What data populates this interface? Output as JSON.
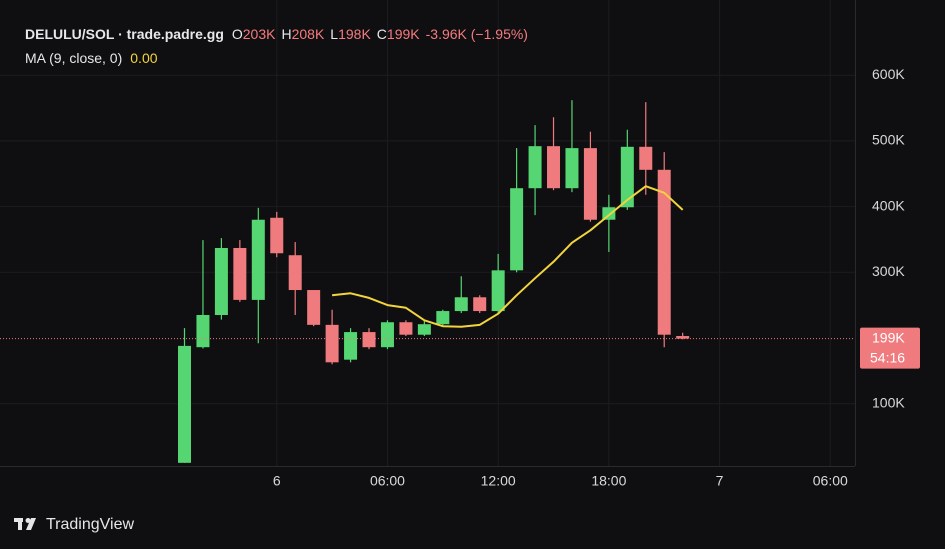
{
  "chart_data": {
    "type": "candlestick",
    "title": "DELULU/SOL · trade.padre.gg",
    "ohlc_legend": [
      {
        "key": "O",
        "label": "203K"
      },
      {
        "key": "H",
        "label": "208K"
      },
      {
        "key": "L",
        "label": "198K"
      },
      {
        "key": "C",
        "label": "199K"
      }
    ],
    "change": "-3.96K (−1.95%)",
    "x": [
      -5,
      -4,
      -3,
      -2,
      -1,
      0,
      1,
      2,
      3,
      4,
      5,
      6,
      7,
      8,
      9,
      10,
      11,
      12,
      13,
      14,
      15,
      16,
      17,
      18,
      19,
      20,
      21,
      22
    ],
    "open": [
      10000,
      186000,
      235000,
      337000,
      258000,
      383000,
      326000,
      273000,
      220000,
      167000,
      209000,
      186000,
      224000,
      205000,
      221000,
      241000,
      262000,
      241000,
      303000,
      428000,
      492000,
      428000,
      489000,
      380000,
      399000,
      491000,
      456000,
      203000
    ],
    "high": [
      215000,
      349000,
      352000,
      349000,
      398000,
      392000,
      346000,
      273000,
      243000,
      215000,
      215000,
      227000,
      227000,
      226000,
      243000,
      294000,
      265000,
      328000,
      489000,
      524000,
      536000,
      562000,
      514000,
      418000,
      517000,
      559000,
      483000,
      208000
    ],
    "low": [
      10000,
      184000,
      228000,
      255000,
      192000,
      323000,
      235000,
      218000,
      160000,
      163000,
      183000,
      183000,
      203000,
      203000,
      219000,
      238000,
      238000,
      238000,
      300000,
      387000,
      425000,
      422000,
      377000,
      331000,
      395000,
      418000,
      186000,
      198000
    ],
    "close": [
      188000,
      235000,
      337000,
      258000,
      380000,
      329000,
      273000,
      220000,
      163000,
      209000,
      186000,
      224000,
      205000,
      221000,
      241000,
      262000,
      241000,
      303000,
      428000,
      492000,
      428000,
      489000,
      380000,
      399000,
      491000,
      456000,
      205000,
      199000
    ],
    "up_color": "#55d672",
    "down_color": "#f07b7e",
    "indicator": {
      "name": "MA (9, close, 0)",
      "value_label": "0.00",
      "color": "#f2d43d",
      "values": [
        null,
        null,
        null,
        null,
        null,
        null,
        null,
        null,
        265000,
        268000,
        261000,
        250000,
        246000,
        227000,
        218000,
        217000,
        220000,
        237000,
        265000,
        291000,
        316000,
        345000,
        364000,
        387000,
        410000,
        431000,
        421000,
        395000
      ]
    },
    "last_price": {
      "value": 199000,
      "label": "199K",
      "countdown": "54:16"
    },
    "xlim": [
      -15,
      31.34
    ],
    "xticks": [
      {
        "value": 0,
        "label": "6"
      },
      {
        "value": 6,
        "label": "06:00"
      },
      {
        "value": 12,
        "label": "12:00"
      },
      {
        "value": 18,
        "label": "18:00"
      },
      {
        "value": 24,
        "label": "7"
      },
      {
        "value": 30,
        "label": "06:00"
      }
    ],
    "ylim": [
      0,
      700000
    ],
    "yticks": [
      {
        "value": 100000,
        "label": "100K"
      },
      {
        "value": 300000,
        "label": "300K"
      },
      {
        "value": 400000,
        "label": "400K"
      },
      {
        "value": 500000,
        "label": "500K"
      },
      {
        "value": 600000,
        "label": "600K"
      }
    ],
    "grid": true,
    "branding": "TradingView"
  }
}
